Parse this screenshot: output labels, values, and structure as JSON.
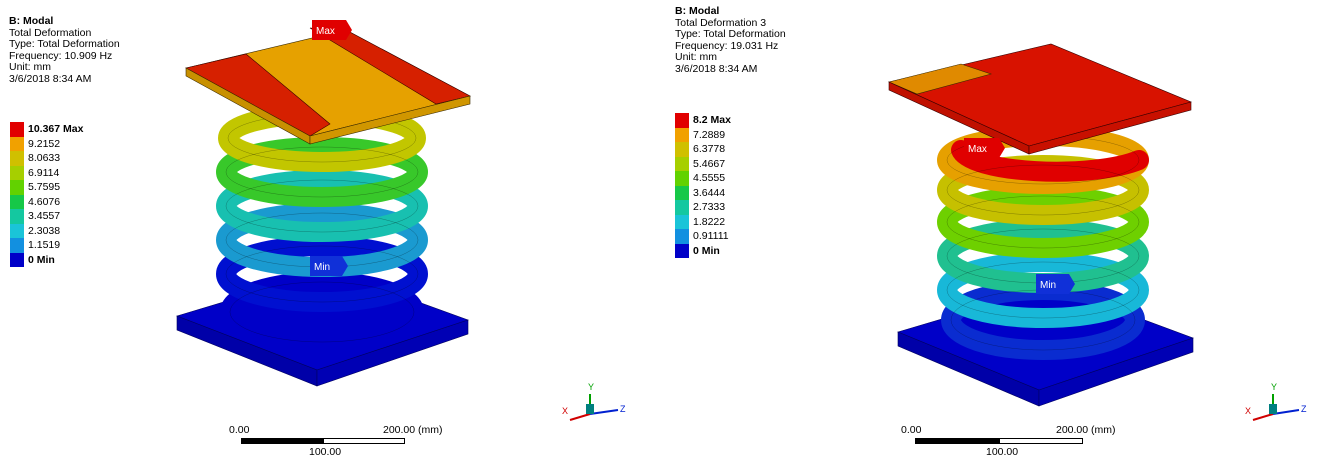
{
  "colors": {
    "red": "#e10000",
    "orange_red": "#ee5a00",
    "orange": "#f1a100",
    "yellow": "#c8c400",
    "yellow_green": "#92d400",
    "green": "#36cc24",
    "teal_green": "#2ec796",
    "cyan": "#1cc4c4",
    "light_blue": "#159cd8",
    "blue": "#0000c8",
    "max_tag": "#e00000",
    "min_tag": "#1030d8"
  },
  "left": {
    "title": "B: Modal",
    "lines": [
      "Total Deformation",
      "Type: Total Deformation",
      "Frequency: 10.909 Hz",
      "Unit: mm",
      "3/6/2018 8:34 AM"
    ],
    "legend": [
      {
        "label": "10.367 Max",
        "color": "#e10000",
        "bold": true
      },
      {
        "label": "9.2152",
        "color": "#f1a100",
        "bold": false
      },
      {
        "label": "8.0633",
        "color": "#d0c000",
        "bold": false
      },
      {
        "label": "6.9114",
        "color": "#a6cf00",
        "bold": false
      },
      {
        "label": "5.7595",
        "color": "#62d200",
        "bold": false
      },
      {
        "label": "4.6076",
        "color": "#16c848",
        "bold": false
      },
      {
        "label": "3.4557",
        "color": "#14c8a0",
        "bold": false
      },
      {
        "label": "2.3038",
        "color": "#1ac4d8",
        "bold": false
      },
      {
        "label": "1.1519",
        "color": "#1290e0",
        "bold": false
      },
      {
        "label": "0 Min",
        "color": "#0000c8",
        "bold": true
      }
    ],
    "max_tag": "Max",
    "min_tag": "Min",
    "scale": {
      "left": "0.00",
      "right": "200.00 (mm)",
      "mid": "100.00"
    }
  },
  "right": {
    "title": "B: Modal",
    "lines": [
      "Total Deformation 3",
      "Type: Total Deformation",
      "Frequency: 19.031 Hz",
      "Unit: mm",
      "3/6/2018 8:34 AM"
    ],
    "legend": [
      {
        "label": "8.2 Max",
        "color": "#e10000",
        "bold": true
      },
      {
        "label": "7.2889",
        "color": "#f1a100",
        "bold": false
      },
      {
        "label": "6.3778",
        "color": "#d0c000",
        "bold": false
      },
      {
        "label": "5.4667",
        "color": "#a6cf00",
        "bold": false
      },
      {
        "label": "4.5555",
        "color": "#62d200",
        "bold": false
      },
      {
        "label": "3.6444",
        "color": "#16c848",
        "bold": false
      },
      {
        "label": "2.7333",
        "color": "#14c8a0",
        "bold": false
      },
      {
        "label": "1.8222",
        "color": "#1ac4d8",
        "bold": false
      },
      {
        "label": "0.91111",
        "color": "#1290e0",
        "bold": false
      },
      {
        "label": "0 Min",
        "color": "#0000c8",
        "bold": true
      }
    ],
    "max_tag": "Max",
    "min_tag": "Min",
    "scale": {
      "left": "0.00",
      "right": "200.00 (mm)",
      "mid": "100.00"
    }
  },
  "triad": {
    "y": "Y",
    "x": "X",
    "z": "Z"
  }
}
